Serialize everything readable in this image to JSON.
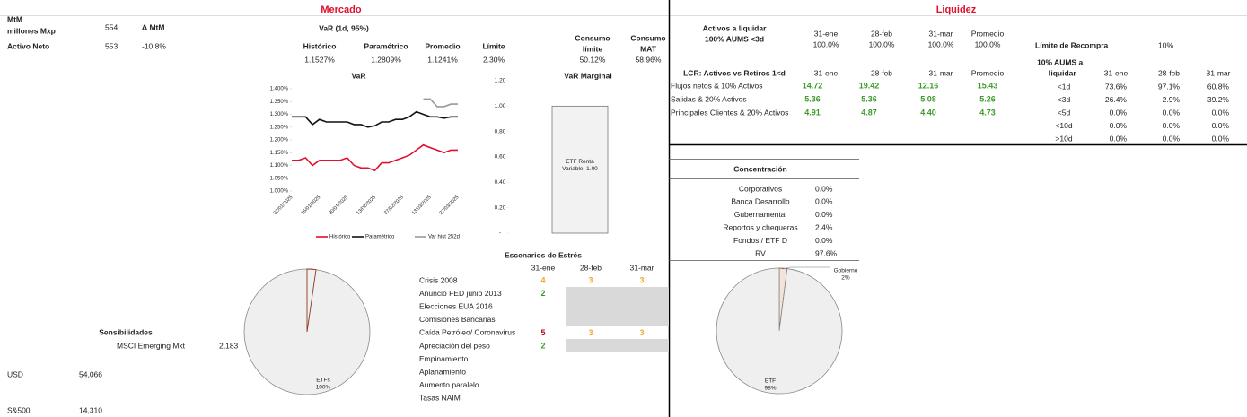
{
  "mercado": {
    "title": "Mercado",
    "mtm_label": [
      "MtM",
      "millones Mxp"
    ],
    "mtm_value": "554",
    "delta_label": "Δ MtM",
    "activo_neto_label": "Activo Neto",
    "activo_neto_value": "553",
    "activo_neto_delta": "-10.8%",
    "var_table": {
      "title": "VaR (1d, 95%)",
      "headers": [
        "Histórico",
        "Paramétrico",
        "Promedio",
        "Límite"
      ],
      "values": [
        "1.1527%",
        "1.2809%",
        "1.1241%",
        "2.30%"
      ]
    },
    "consumo": {
      "headers": [
        [
          "Consumo",
          "límite"
        ],
        [
          "Consumo",
          "MAT"
        ]
      ],
      "values": [
        "50.12%",
        "58.96%"
      ]
    },
    "var_chart": {
      "type": "line",
      "title": "VaR",
      "categories": [
        "02/01/2025",
        null,
        null,
        null,
        "16/01/2025",
        null,
        null,
        null,
        "30/01/2025",
        null,
        null,
        null,
        "13/02/2025",
        null,
        null,
        null,
        "27/02/2025",
        null,
        null,
        null,
        "13/03/2025",
        null,
        null,
        null,
        "27/03/2025"
      ],
      "series": [
        {
          "name": "Histórico",
          "color": "#e0102f",
          "values": [
            1.12,
            1.12,
            1.13,
            1.1,
            1.12,
            1.12,
            1.12,
            1.12,
            1.13,
            1.1,
            1.09,
            1.09,
            1.08,
            1.11,
            1.11,
            1.12,
            1.13,
            1.14,
            1.16,
            1.18,
            1.17,
            1.16,
            1.15,
            1.16,
            1.16
          ]
        },
        {
          "name": "Paramétrico",
          "color": "#111111",
          "values": [
            1.29,
            1.29,
            1.29,
            1.26,
            1.28,
            1.27,
            1.27,
            1.27,
            1.27,
            1.26,
            1.26,
            1.25,
            1.255,
            1.27,
            1.27,
            1.28,
            1.28,
            1.29,
            1.31,
            1.3,
            1.29,
            1.29,
            1.285,
            1.29,
            1.29
          ]
        },
        {
          "name": "Var hist 252d",
          "color": "#999999",
          "values": [
            null,
            null,
            null,
            null,
            null,
            null,
            null,
            null,
            null,
            null,
            null,
            null,
            null,
            null,
            null,
            null,
            null,
            null,
            null,
            1.36,
            1.36,
            1.33,
            1.33,
            1.34,
            1.34
          ]
        }
      ],
      "ylim": [
        1.0,
        1.4
      ],
      "yticks": [
        {
          "value": 1.0,
          "label": "1.000%"
        },
        {
          "value": 1.05,
          "label": "1.050%"
        },
        {
          "value": 1.1,
          "label": "1.100%"
        },
        {
          "value": 1.15,
          "label": "1.150%"
        },
        {
          "value": 1.2,
          "label": "1.200%"
        },
        {
          "value": 1.25,
          "label": "1.250%"
        },
        {
          "value": 1.3,
          "label": "1.300%"
        },
        {
          "value": 1.35,
          "label": "1.350%"
        },
        {
          "value": 1.4,
          "label": "1.400%"
        }
      ],
      "legend": "bottom"
    },
    "var_marginal": {
      "type": "bar",
      "title": "VaR Marginal",
      "values": [
        1.0
      ],
      "value_labels": [
        "ETF Renta Variable, 1.00"
      ],
      "color": "#f2f2f2",
      "ylim": [
        0,
        1.2
      ],
      "yticks": [
        {
          "value": 0,
          "label": "-"
        },
        {
          "value": 0.2,
          "label": "0.20"
        },
        {
          "value": 0.4,
          "label": "0.40"
        },
        {
          "value": 0.6,
          "label": "0.60"
        },
        {
          "value": 0.8,
          "label": "0.80"
        },
        {
          "value": 1.0,
          "label": "1.00"
        },
        {
          "value": 1.2,
          "label": "1.20"
        }
      ]
    },
    "pie": {
      "type": "pie",
      "categories": [
        "ETFs"
      ],
      "values": [
        100
      ],
      "value_labels": [
        "100%"
      ],
      "color": "#efefef"
    },
    "sensibilidades": {
      "title": "Sensibilidades",
      "rows": [
        [
          "MSCI Emerging Mkt",
          "2,183"
        ],
        [
          "USD",
          "54,066"
        ],
        [
          "S&500",
          "14,310"
        ]
      ]
    },
    "estres": {
      "title": "Escenarios de Estrés",
      "headers": [
        "31-ene",
        "28-feb",
        "31-mar"
      ],
      "rows": [
        {
          "name": "Crisis 2008",
          "values": [
            4,
            3,
            3
          ],
          "colors": [
            "#f0a830",
            "#f0a830",
            "#f0a830"
          ]
        },
        {
          "name": "Anuncio FED junio 2013",
          "values": [
            2,
            null,
            null
          ],
          "colors": [
            "#3c9a2a",
            null,
            null
          ]
        },
        {
          "name": "Elecciones EUA 2016",
          "values": [
            null,
            null,
            null
          ],
          "colors": [
            null,
            null,
            null
          ]
        },
        {
          "name": "Comisiones Bancarias",
          "values": [
            null,
            null,
            null
          ],
          "colors": [
            null,
            null,
            null
          ]
        },
        {
          "name": "Caída Petróleo/ Coronavirus",
          "values": [
            5,
            3,
            3
          ],
          "colors": [
            "#b8001f",
            "#f0a830",
            "#f0a830"
          ]
        },
        {
          "name": "Apreciación del peso",
          "values": [
            2,
            null,
            null
          ],
          "colors": [
            "#3c9a2a",
            null,
            null
          ]
        },
        {
          "name": "Empinamiento",
          "values": [
            null,
            null,
            null
          ],
          "colors": [
            null,
            null,
            null
          ]
        },
        {
          "name": "Aplanamiento",
          "values": [
            null,
            null,
            null
          ],
          "colors": [
            null,
            null,
            null
          ]
        },
        {
          "name": "Aumento paralelo",
          "values": [
            null,
            null,
            null
          ],
          "colors": [
            null,
            null,
            null
          ]
        },
        {
          "name": "Tasas NAIM",
          "values": [
            null,
            null,
            null
          ],
          "colors": [
            null,
            null,
            null
          ]
        }
      ]
    }
  },
  "liquidez": {
    "title": "Liquidez",
    "activos": {
      "title": [
        "Activos a liquidar",
        "100% AUMS <3d"
      ],
      "headers": [
        "31-ene",
        "28-feb",
        "31-mar",
        "Promedio"
      ],
      "values": [
        "100.0%",
        "100.0%",
        "100.0%",
        "100.0%"
      ]
    },
    "limite_recompra": {
      "label": "Límite de Recompra",
      "value": "10%"
    },
    "lcr": {
      "title": "LCR: Activos vs Retiros 1<d",
      "headers": [
        "31-ene",
        "28-feb",
        "31-mar",
        "Promedio"
      ],
      "rows": [
        {
          "name": "Flujos netos & 10% Activos",
          "values": [
            "14.72",
            "19.42",
            "12.16",
            "15.43"
          ]
        },
        {
          "name": "Salidas & 20% Activos",
          "values": [
            "5.36",
            "5.36",
            "5.08",
            "5.26"
          ]
        },
        {
          "name": "Principales Clientes & 20% Activos",
          "values": [
            "4.91",
            "4.87",
            "4.40",
            "4.73"
          ]
        }
      ],
      "color": "#3c9a2a"
    },
    "aums": {
      "title": [
        "10% AUMS a",
        "liquidar"
      ],
      "headers": [
        "31-ene",
        "28-feb",
        "31-mar"
      ],
      "rows": [
        {
          "name": "<1d",
          "values": [
            "73.6%",
            "97.1%",
            "60.8%"
          ]
        },
        {
          "name": "<3d",
          "values": [
            "26.4%",
            "2.9%",
            "39.2%"
          ]
        },
        {
          "name": "<5d",
          "values": [
            "0.0%",
            "0.0%",
            "0.0%"
          ]
        },
        {
          "name": "<10d",
          "values": [
            "0.0%",
            "0.0%",
            "0.0%"
          ]
        },
        {
          "name": ">10d",
          "values": [
            "0.0%",
            "0.0%",
            "0.0%"
          ]
        }
      ]
    },
    "concentracion": {
      "title": "Concentración",
      "rows": [
        [
          "Corporativos",
          "0.0%"
        ],
        [
          "Banca Desarrollo",
          "0.0%"
        ],
        [
          "Gubernamental",
          "0.0%"
        ],
        [
          "Reportos y chequeras",
          "2.4%"
        ],
        [
          "Fondos / ETF D",
          "0.0%"
        ],
        [
          "RV",
          "97.6%"
        ]
      ]
    },
    "pie": {
      "type": "pie",
      "categories": [
        "Gobierno",
        "ETF"
      ],
      "values": [
        2,
        98
      ],
      "value_labels": [
        "2%",
        "98%"
      ],
      "colors": [
        "#f2e4da",
        "#efefef"
      ]
    }
  }
}
